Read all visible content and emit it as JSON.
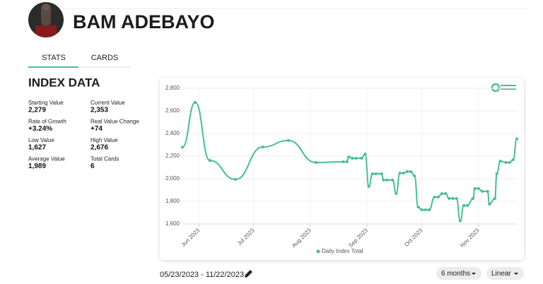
{
  "header": {
    "title": "BAM ADEBAYO"
  },
  "tabs": [
    "STATS",
    "CARDS"
  ],
  "index_data": {
    "title": "INDEX DATA",
    "stats": [
      {
        "label": "Starting Value",
        "value": "2,279"
      },
      {
        "label": "Current Value",
        "value": "2,353"
      },
      {
        "label": "Rate of Growth",
        "value": "+3.24%"
      },
      {
        "label": "Real Value Change",
        "value": "+74"
      },
      {
        "label": "Low Value",
        "value": "1,627"
      },
      {
        "label": "High Value",
        "value": "2,676"
      },
      {
        "label": "Average Value",
        "value": "1,989"
      },
      {
        "label": "Total Cards",
        "value": "6"
      }
    ]
  },
  "date_range": "05/23/2023 - 11/22/2023",
  "controls": [
    "6 months",
    "Linear"
  ],
  "chart_data": {
    "type": "line",
    "grid": true,
    "legend": "bottom",
    "xlim": [
      0,
      183
    ],
    "xticks": [
      {
        "value": 9,
        "label": "Jun 2023"
      },
      {
        "value": 39,
        "label": "Jul 2023"
      },
      {
        "value": 70,
        "label": "Aug 2023"
      },
      {
        "value": 101,
        "label": "Sep 2023"
      },
      {
        "value": 131,
        "label": "Oct 2023"
      },
      {
        "value": 162,
        "label": "Nov 2023"
      }
    ],
    "ylim": [
      1600,
      2800
    ],
    "yticks": [
      {
        "value": 1600,
        "label": "1,600"
      },
      {
        "value": 1800,
        "label": "1,800"
      },
      {
        "value": 2000,
        "label": "2,000"
      },
      {
        "value": 2200,
        "label": "2,200"
      },
      {
        "value": 2400,
        "label": "2,400"
      },
      {
        "value": 2600,
        "label": "2,600"
      },
      {
        "value": 2800,
        "label": "2,800"
      }
    ],
    "series": [
      {
        "name": "Daily Index Total",
        "color": "#45c08f",
        "x": [
          0,
          7,
          15,
          29,
          44,
          58,
          73,
          88,
          90,
          91,
          93,
          95,
          98,
          100,
          102,
          104,
          106,
          109,
          110,
          112,
          115,
          117,
          119,
          121,
          123,
          125,
          127,
          129,
          131,
          133,
          135,
          138,
          140,
          142,
          144,
          146,
          148,
          150,
          152,
          154,
          156,
          159,
          160,
          162,
          164,
          167,
          168,
          171,
          172,
          174,
          177,
          179,
          181,
          183
        ],
        "values": [
          2279,
          2676,
          2162,
          1994,
          2281,
          2338,
          2144,
          2150,
          2150,
          2194,
          2181,
          2181,
          2181,
          2219,
          1931,
          2044,
          2044,
          2044,
          1988,
          1988,
          1988,
          1869,
          2050,
          2050,
          2063,
          2063,
          2025,
          1750,
          1725,
          1725,
          1725,
          1838,
          1838,
          1869,
          1869,
          1825,
          1825,
          1825,
          1627,
          1763,
          1763,
          1825,
          1913,
          1913,
          1888,
          1888,
          1775,
          1825,
          2044,
          2156,
          2144,
          2144,
          2169,
          2353
        ]
      }
    ]
  }
}
